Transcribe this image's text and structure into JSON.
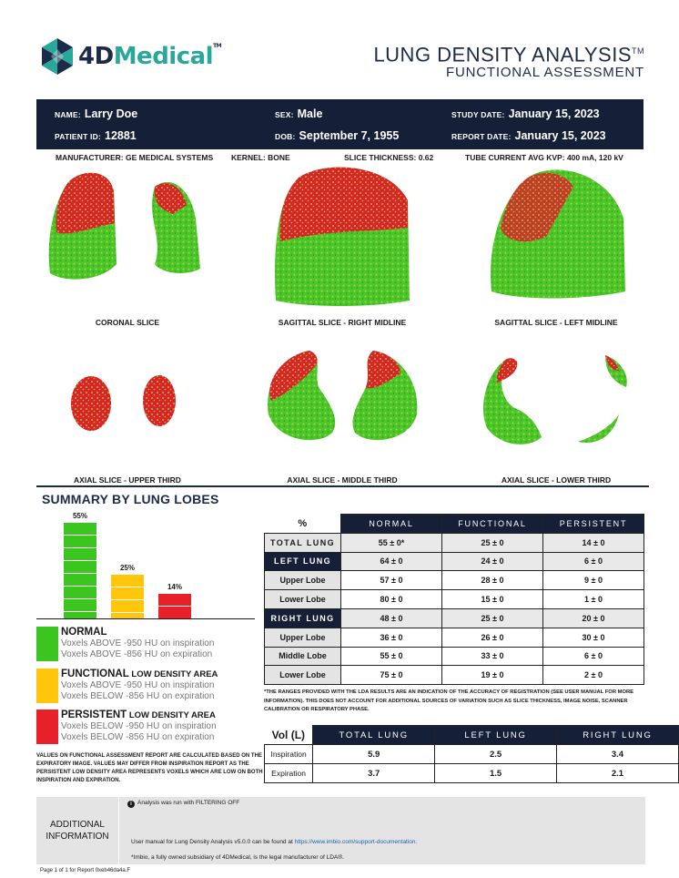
{
  "header": {
    "logo_text_4d": "4D",
    "logo_text_medical": "Medical",
    "logo_tm": "TM",
    "title": "LUNG DENSITY ANALYSIS",
    "title_tm": "TM",
    "subtitle": "FUNCTIONAL ASSESSMENT"
  },
  "patient": {
    "name_label": "NAME:",
    "name": "Larry Doe",
    "sex_label": "SEX:",
    "sex": "Male",
    "study_date_label": "STUDY DATE:",
    "study_date": "January 15, 2023",
    "patient_id_label": "PATIENT ID:",
    "patient_id": "12881",
    "dob_label": "DOB:",
    "dob": "September 7, 1955",
    "report_date_label": "REPORT DATE:",
    "report_date": "January 15, 2023"
  },
  "scan_info": {
    "manufacturer_label": "MANUFACTURER:",
    "manufacturer": "GE MEDICAL SYSTEMS",
    "kernel_label": "KERNEL:",
    "kernel": "BONE",
    "slice_thickness_label": "SLICE THICKNESS:",
    "slice_thickness": "0.62",
    "tube_label": "TUBE CURRENT AVG KVP:",
    "tube": "400 mA, 120 kV"
  },
  "slices": [
    {
      "caption": "CORONAL SLICE"
    },
    {
      "caption": "SAGITTAL SLICE - RIGHT MIDLINE"
    },
    {
      "caption": "SAGITTAL SLICE - LEFT MIDLINE"
    },
    {
      "caption": "AXIAL SLICE - UPPER THIRD"
    },
    {
      "caption": "AXIAL SLICE - MIDDLE THIRD"
    },
    {
      "caption": "AXIAL SLICE - LOWER THIRD"
    }
  ],
  "summary_title": "SUMMARY BY LUNG LOBES",
  "chart_data": {
    "type": "bar",
    "categories": [
      "Normal",
      "Functional",
      "Persistent"
    ],
    "values": [
      55,
      25,
      14
    ],
    "labels": [
      "55%",
      "25%",
      "14%"
    ],
    "colors": [
      "#3cc41f",
      "#ffc60b",
      "#e8202a"
    ],
    "ylim": [
      0,
      55
    ],
    "title": "",
    "xlabel": "",
    "ylabel": ""
  },
  "legend": [
    {
      "title": "NORMAL",
      "subtitle": "",
      "line1": "Voxels ABOVE -950 HU on inspiration",
      "line2": "Voxels ABOVE -856 HU on expiration",
      "color": "#3cc41f"
    },
    {
      "title": "FUNCTIONAL",
      "subtitle": " LOW DENSITY AREA",
      "line1": "Voxels ABOVE -950 HU on inspiration",
      "line2": "Voxels BELOW -856 HU on expiration",
      "color": "#ffc60b"
    },
    {
      "title": "PERSISTENT",
      "subtitle": " LOW DENSITY AREA",
      "line1": "Voxels BELOW -950 HU on inspiration",
      "line2": "Voxels BELOW -856 HU on expiration",
      "color": "#e8202a"
    }
  ],
  "footnote_left": "VALUES ON FUNCTIONAL ASSESSMENT REPORT ARE CALCULATED BASED ON THE EXPIRATORY IMAGE. VALUES MAY DIFFER FROM INSPIRATION REPORT AS THE PERSISTENT LOW DENSITY AREA REPRESENTS VOXELS WHICH ARE LOW ON BOTH INSPIRATION AND EXPIRATION.",
  "summary_table": {
    "corner": "%",
    "columns": [
      "NORMAL",
      "FUNCTIONAL",
      "PERSISTENT"
    ],
    "rows": [
      {
        "label": "TOTAL LUNG",
        "values": [
          "55 ± 0*",
          "25 ± 0",
          "14 ± 0"
        ]
      },
      {
        "label": "LEFT LUNG",
        "values": [
          "64 ± 0",
          "24 ± 0",
          "6 ± 0"
        ]
      },
      {
        "label": "Upper Lobe",
        "values": [
          "57 ± 0",
          "28 ± 0",
          "9 ± 0"
        ]
      },
      {
        "label": "Lower Lobe",
        "values": [
          "80 ± 0",
          "15 ± 0",
          "1 ± 0"
        ]
      },
      {
        "label": "RIGHT LUNG",
        "values": [
          "48 ± 0",
          "25 ± 0",
          "20 ± 0"
        ]
      },
      {
        "label": "Upper Lobe",
        "values": [
          "36 ± 0",
          "26 ± 0",
          "30 ± 0"
        ]
      },
      {
        "label": "Middle Lobe",
        "values": [
          "55 ± 0",
          "33 ± 0",
          "6 ± 0"
        ]
      },
      {
        "label": "Lower Lobe",
        "values": [
          "75 ± 0",
          "19 ± 0",
          "2 ± 0"
        ]
      }
    ]
  },
  "table_note": "*THE RANGES PROVIDED WITH THE LDA RESULTS ARE AN INDICATION OF THE ACCURACY OF REGISTRATION (SEE USER MANUAL FOR MORE INFORMATION). THIS DOES NOT ACCOUNT FOR ADDITIONAL SOURCES OF VARIATION SUCH AS SLICE THICKNESS, IMAGE NOISE, SCANNER CALIBRATION OR RESPIRATORY PHASE.",
  "volume_table": {
    "corner": "Vol (L)",
    "columns": [
      "TOTAL LUNG",
      "LEFT LUNG",
      "RIGHT LUNG"
    ],
    "rows": [
      {
        "label": "Inspiration",
        "values": [
          "5.9",
          "2.5",
          "3.4"
        ]
      },
      {
        "label": "Expiration",
        "values": [
          "3.7",
          "1.5",
          "2.1"
        ]
      }
    ]
  },
  "additional": {
    "label_line1": "ADDITIONAL",
    "label_line2": "INFORMATION",
    "info_icon": "i",
    "filter_text": "Analysis was run with FILTERING OFF",
    "manual_text": "User manual for Lung Density Analysis v5.0.0 can be found at",
    "manual_link": "https://www.imbio.com/support-documentation.",
    "legal_text": "*Imbio, a fully owned subsidiary of 4DMedical, is the legal manufacturer of LDA®."
  },
  "footer": "Page 1 of 1 for Report 0xeb46da4a.F"
}
